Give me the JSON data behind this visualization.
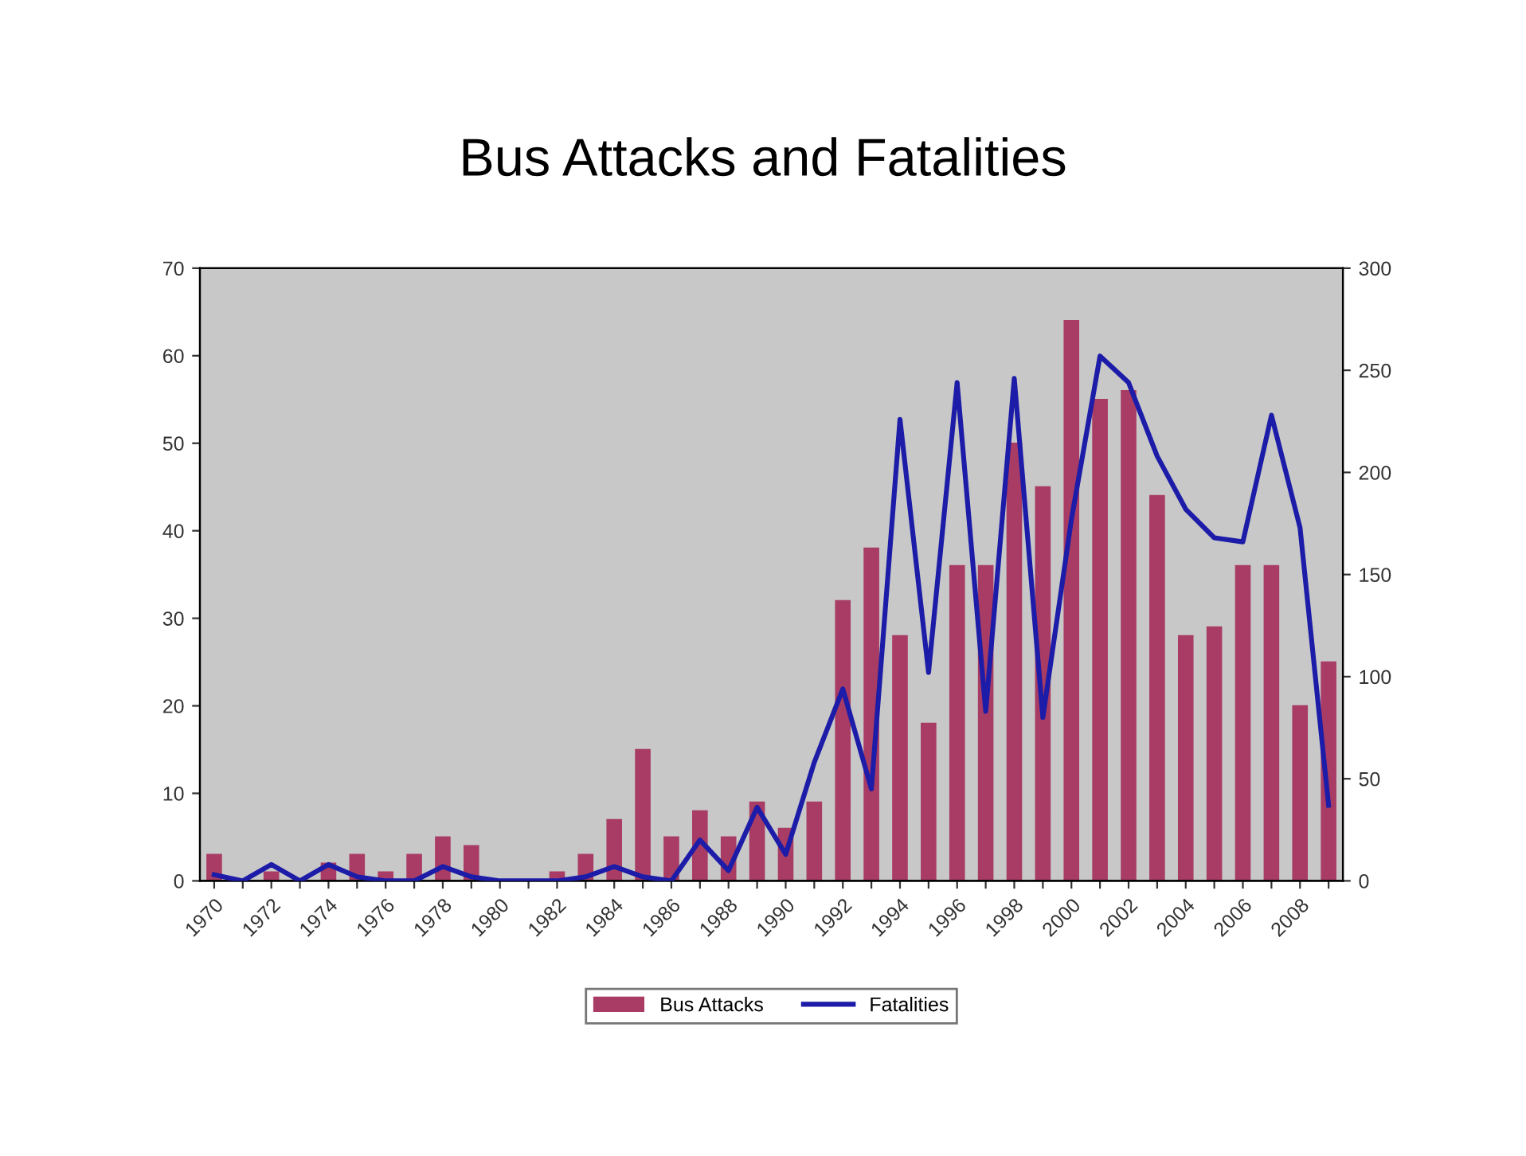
{
  "chart_data": {
    "type": "bar",
    "title": "Bus Attacks and Fatalities",
    "categories": [
      "1970",
      null,
      "1972",
      null,
      "1974",
      null,
      "1976",
      null,
      "1978",
      null,
      "1980",
      null,
      "1982",
      null,
      "1984",
      null,
      "1986",
      null,
      "1988",
      null,
      "1990",
      null,
      "1992",
      null,
      "1994",
      null,
      "1996",
      null,
      "1998",
      null,
      "2000",
      null,
      "2002",
      null,
      "2004",
      null,
      "2006",
      null,
      "2008",
      null
    ],
    "series": [
      {
        "name": "Bus Attacks",
        "color": "#a83c64",
        "values": [
          3,
          0,
          1,
          0,
          2,
          3,
          1,
          3,
          5,
          4,
          0,
          0,
          1,
          3,
          7,
          15,
          5,
          8,
          5,
          9,
          6,
          9,
          32,
          38,
          28,
          18,
          36,
          36,
          50,
          45,
          64,
          55,
          56,
          44,
          28,
          29,
          36,
          36,
          20,
          25
        ]
      },
      {
        "name": "Fatalities",
        "type": "line",
        "axis": "y2",
        "color": "#1c1ca8",
        "values": [
          3,
          0,
          8,
          0,
          8,
          2,
          0,
          0,
          7,
          2,
          0,
          0,
          0,
          2,
          7,
          2,
          0,
          20,
          5,
          36,
          13,
          58,
          94,
          45,
          226,
          102,
          244,
          83,
          246,
          80,
          177,
          257,
          244,
          208,
          182,
          168,
          166,
          228,
          173,
          37
        ]
      }
    ],
    "ylim": [
      0,
      70
    ],
    "yticks": [
      0,
      10,
      20,
      30,
      40,
      50,
      60,
      70
    ],
    "y2lim": [
      0,
      300
    ],
    "y2ticks": [
      0,
      50,
      100,
      150,
      200,
      250,
      300
    ],
    "grid": false,
    "legend": "bottom",
    "marker": "none",
    "line_style": "solid"
  }
}
